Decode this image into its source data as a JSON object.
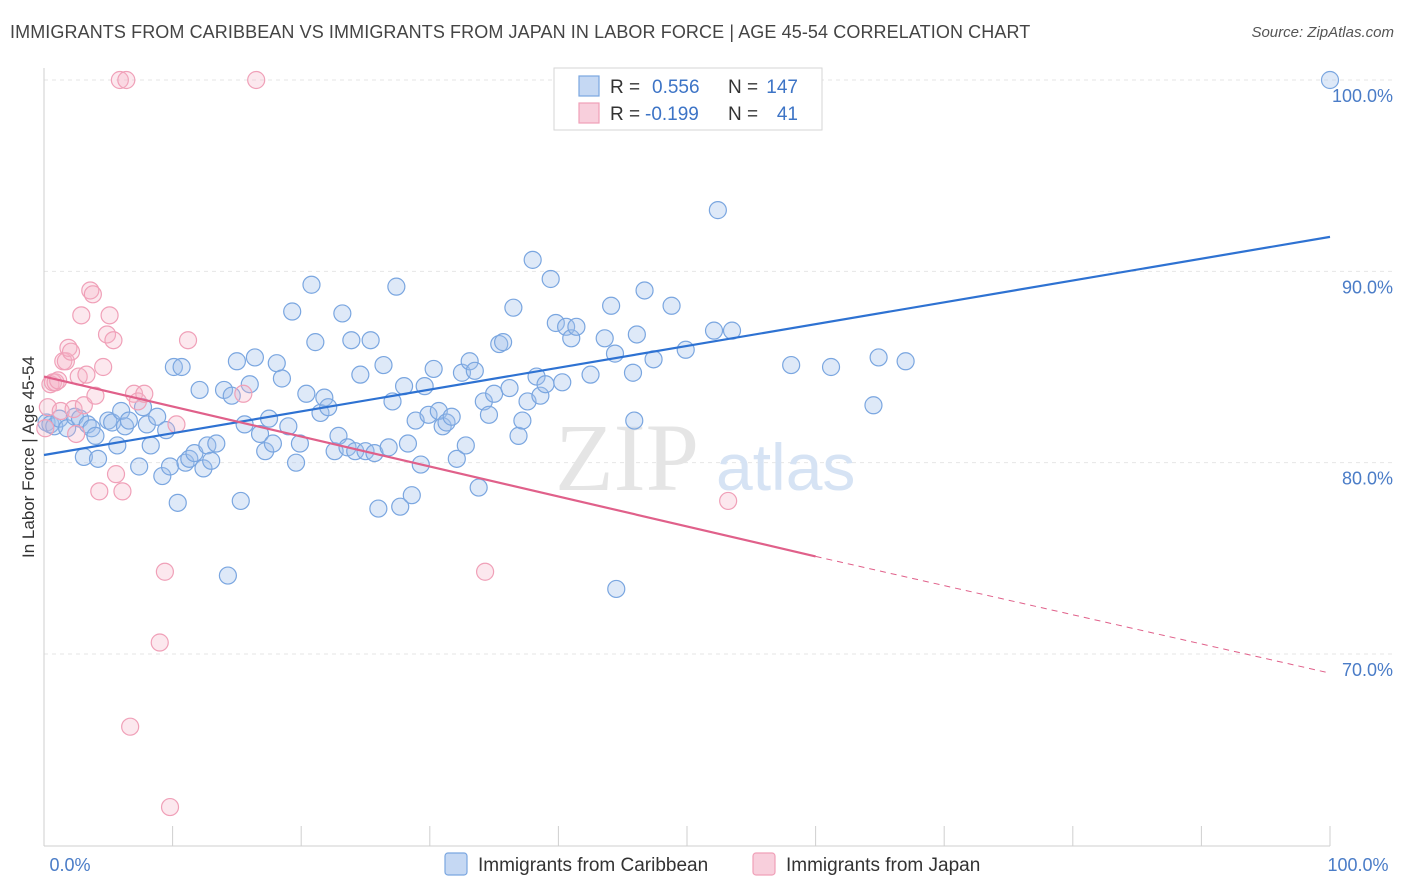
{
  "title": "IMMIGRANTS FROM CARIBBEAN VS IMMIGRANTS FROM JAPAN IN LABOR FORCE | AGE 45-54 CORRELATION CHART",
  "source": "Source: ZipAtlas.com",
  "watermark": {
    "zip": "ZIP",
    "atlas": "atlas"
  },
  "colors": {
    "blue": "#7aa6e0",
    "blue_line": "#2e72d2",
    "pink": "#f0a0b8",
    "pink_line": "#e0608a"
  },
  "chart_data": {
    "type": "scatter",
    "title": "IMMIGRANTS FROM CARIBBEAN VS IMMIGRANTS FROM JAPAN IN LABOR FORCE | AGE 45-54 CORRELATION CHART",
    "xlabel": "",
    "ylabel": "In Labor Force | Age 45-54",
    "xlim": [
      0,
      100
    ],
    "ylim": [
      60.5,
      100.8
    ],
    "x_tick_labels": [
      "0.0%",
      "100.0%"
    ],
    "y_ticks": [
      70,
      80,
      90,
      100
    ],
    "y_tick_labels": [
      "70.0%",
      "80.0%",
      "90.0%",
      "100.0%"
    ],
    "legend": [
      {
        "r_label": "R =",
        "r_value": "0.556",
        "n_label": "N =",
        "n_value": "147"
      },
      {
        "r_label": "R =",
        "r_value": "-0.199",
        "n_label": "N =",
        "n_value": "41"
      }
    ],
    "series": [
      {
        "name": "Immigrants from Caribbean",
        "trend": {
          "x0": 0,
          "y0": 80.4,
          "x1": 100,
          "y1": 91.8
        },
        "points": [
          [
            0.2,
            82.1
          ],
          [
            0.5,
            82.0
          ],
          [
            0.8,
            81.9
          ],
          [
            1.2,
            82.3
          ],
          [
            1.8,
            81.8
          ],
          [
            2.4,
            82.4
          ],
          [
            2.8,
            82.3
          ],
          [
            3.1,
            80.3
          ],
          [
            3.4,
            82.0
          ],
          [
            3.7,
            81.8
          ],
          [
            4.0,
            81.4
          ],
          [
            4.2,
            80.2
          ],
          [
            5.0,
            82.2
          ],
          [
            5.3,
            82.1
          ],
          [
            5.7,
            80.9
          ],
          [
            6.0,
            82.7
          ],
          [
            6.3,
            81.9
          ],
          [
            6.6,
            82.2
          ],
          [
            7.4,
            79.8
          ],
          [
            7.7,
            82.9
          ],
          [
            8.0,
            82.0
          ],
          [
            8.3,
            80.9
          ],
          [
            8.8,
            82.4
          ],
          [
            9.2,
            79.3
          ],
          [
            9.5,
            81.7
          ],
          [
            9.8,
            79.8
          ],
          [
            10.1,
            85.0
          ],
          [
            10.4,
            77.9
          ],
          [
            10.7,
            85.0
          ],
          [
            11.0,
            80.0
          ],
          [
            11.3,
            80.2
          ],
          [
            11.7,
            80.5
          ],
          [
            12.1,
            83.8
          ],
          [
            12.4,
            79.7
          ],
          [
            12.7,
            80.9
          ],
          [
            13.0,
            80.1
          ],
          [
            13.4,
            81.0
          ],
          [
            14.0,
            83.8
          ],
          [
            14.3,
            74.1
          ],
          [
            14.6,
            83.5
          ],
          [
            15.0,
            85.3
          ],
          [
            15.3,
            78.0
          ],
          [
            15.6,
            82.0
          ],
          [
            16.0,
            84.1
          ],
          [
            16.4,
            85.5
          ],
          [
            16.8,
            81.5
          ],
          [
            17.2,
            80.6
          ],
          [
            17.5,
            82.3
          ],
          [
            17.8,
            81.0
          ],
          [
            18.1,
            85.2
          ],
          [
            18.5,
            84.4
          ],
          [
            19.0,
            81.9
          ],
          [
            19.3,
            87.9
          ],
          [
            19.6,
            80.0
          ],
          [
            19.9,
            81.0
          ],
          [
            20.4,
            83.6
          ],
          [
            20.8,
            89.3
          ],
          [
            21.1,
            86.3
          ],
          [
            21.5,
            82.6
          ],
          [
            21.8,
            83.4
          ],
          [
            22.1,
            82.9
          ],
          [
            22.6,
            80.6
          ],
          [
            22.9,
            81.4
          ],
          [
            23.2,
            87.8
          ],
          [
            23.6,
            80.8
          ],
          [
            23.9,
            86.4
          ],
          [
            24.2,
            80.6
          ],
          [
            24.6,
            84.6
          ],
          [
            25.0,
            80.6
          ],
          [
            25.4,
            86.4
          ],
          [
            25.7,
            80.5
          ],
          [
            26.0,
            77.6
          ],
          [
            26.4,
            85.1
          ],
          [
            26.8,
            80.8
          ],
          [
            27.1,
            83.2
          ],
          [
            27.4,
            89.2
          ],
          [
            27.7,
            77.7
          ],
          [
            28.0,
            84.0
          ],
          [
            28.3,
            81.0
          ],
          [
            28.6,
            78.3
          ],
          [
            28.9,
            82.2
          ],
          [
            29.3,
            79.9
          ],
          [
            29.6,
            84.0
          ],
          [
            29.9,
            82.5
          ],
          [
            30.3,
            84.9
          ],
          [
            30.7,
            82.7
          ],
          [
            31.0,
            81.9
          ],
          [
            31.3,
            82.1
          ],
          [
            31.7,
            82.4
          ],
          [
            32.1,
            80.2
          ],
          [
            32.5,
            84.7
          ],
          [
            32.8,
            80.9
          ],
          [
            33.1,
            85.3
          ],
          [
            33.5,
            84.8
          ],
          [
            33.8,
            78.7
          ],
          [
            34.2,
            83.2
          ],
          [
            34.6,
            82.5
          ],
          [
            35.0,
            83.6
          ],
          [
            35.4,
            86.2
          ],
          [
            35.7,
            86.3
          ],
          [
            36.2,
            83.9
          ],
          [
            36.5,
            88.1
          ],
          [
            36.9,
            81.4
          ],
          [
            37.2,
            82.2
          ],
          [
            37.6,
            83.2
          ],
          [
            38.0,
            90.6
          ],
          [
            38.3,
            84.5
          ],
          [
            38.6,
            83.5
          ],
          [
            39.0,
            84.1
          ],
          [
            39.4,
            89.6
          ],
          [
            39.8,
            87.3
          ],
          [
            40.3,
            84.2
          ],
          [
            40.6,
            87.1
          ],
          [
            41.0,
            86.5
          ],
          [
            41.4,
            87.1
          ],
          [
            42.5,
            84.6
          ],
          [
            43.6,
            86.5
          ],
          [
            44.1,
            88.2
          ],
          [
            44.4,
            85.7
          ],
          [
            45.8,
            84.7
          ],
          [
            45.9,
            82.2
          ],
          [
            46.1,
            86.7
          ],
          [
            46.7,
            89.0
          ],
          [
            47.4,
            85.4
          ],
          [
            48.8,
            88.2
          ],
          [
            49.9,
            85.9
          ],
          [
            52.1,
            86.9
          ],
          [
            52.4,
            93.2
          ],
          [
            53.5,
            86.9
          ],
          [
            58.1,
            85.1
          ],
          [
            61.2,
            85.0
          ],
          [
            64.5,
            83.0
          ],
          [
            64.9,
            85.5
          ],
          [
            67.0,
            85.3
          ],
          [
            100.0,
            100.0
          ],
          [
            44.5,
            73.4
          ]
        ]
      },
      {
        "name": "Immigrants from Japan",
        "trend": {
          "x0": 0,
          "y0": 84.5,
          "x1": 60,
          "y1": 75.1,
          "dash_x1": 100,
          "dash_y1": 69.0
        },
        "points": [
          [
            0.1,
            81.8
          ],
          [
            0.3,
            82.9
          ],
          [
            0.5,
            84.1
          ],
          [
            0.7,
            84.2
          ],
          [
            0.9,
            84.2
          ],
          [
            1.1,
            84.3
          ],
          [
            1.3,
            82.7
          ],
          [
            1.5,
            85.3
          ],
          [
            1.7,
            85.3
          ],
          [
            1.9,
            86.0
          ],
          [
            2.1,
            85.8
          ],
          [
            2.3,
            82.8
          ],
          [
            2.5,
            81.5
          ],
          [
            2.7,
            84.5
          ],
          [
            2.9,
            87.7
          ],
          [
            3.1,
            83.0
          ],
          [
            3.3,
            84.6
          ],
          [
            3.6,
            89.0
          ],
          [
            3.8,
            88.8
          ],
          [
            4.0,
            83.5
          ],
          [
            4.3,
            78.5
          ],
          [
            4.6,
            85.0
          ],
          [
            4.9,
            86.7
          ],
          [
            5.1,
            87.7
          ],
          [
            5.4,
            86.4
          ],
          [
            5.6,
            79.4
          ],
          [
            5.9,
            100.0
          ],
          [
            6.1,
            78.5
          ],
          [
            6.4,
            100.0
          ],
          [
            6.7,
            66.2
          ],
          [
            7.0,
            83.6
          ],
          [
            7.3,
            83.2
          ],
          [
            7.8,
            83.6
          ],
          [
            9.0,
            70.6
          ],
          [
            9.4,
            74.3
          ],
          [
            9.8,
            62.0
          ],
          [
            10.3,
            82.0
          ],
          [
            11.2,
            86.4
          ],
          [
            15.5,
            83.6
          ],
          [
            16.5,
            100.0
          ],
          [
            34.3,
            74.3
          ],
          [
            53.2,
            78.0
          ]
        ]
      }
    ]
  }
}
